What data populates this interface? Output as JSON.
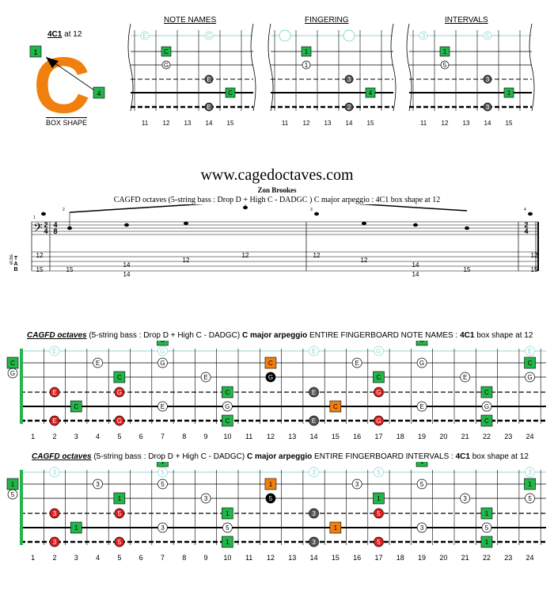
{
  "box": {
    "label": "4C1",
    "position": "at 12",
    "letter": "C",
    "finger_top": "1",
    "finger_bottom": "4",
    "caption": "BOX SHAPE",
    "color": "#f07f0e"
  },
  "mini": {
    "titles": [
      "NOTE NAMES",
      "FINGERING",
      "INTERVALS"
    ],
    "frets": [
      "11",
      "12",
      "13",
      "14",
      "15"
    ],
    "note_labels": {
      "top_open_1": "E",
      "top_open_2": "G",
      "s2": "C",
      "s3": "G",
      "s4": "E",
      "s5": "C",
      "s6": "E"
    },
    "fingering_labels": {
      "s2": "1",
      "s3": "1",
      "s4": "3",
      "s5": "4",
      "s6": "2"
    },
    "interval_labels": {
      "top_open_1": "3",
      "top_open_2": "5",
      "s2": "1",
      "s3": "5",
      "s4": "3",
      "s5": "1",
      "s6": "3"
    }
  },
  "score": {
    "site": "www.cagedoctaves.com",
    "author": "Zon Brookes",
    "subtitle": "CAGFD octaves (5-string bass : Drop D + High C - DADGC )  C major arpeggio : 4C1 box shape at 12",
    "instrument": "el.bs.",
    "time_sig_1": [
      "2",
      "4"
    ],
    "time_sig_2": [
      "4",
      "8"
    ],
    "time_sig_3": [
      "2",
      "4"
    ],
    "tab_letters": [
      "T",
      "A",
      "B"
    ],
    "measure_numbers": [
      "1",
      "2",
      "3",
      "4"
    ],
    "tab_numbers": [
      "12",
      "15",
      "15",
      "14",
      "14",
      "12",
      "12",
      "12",
      "12",
      "14",
      "14",
      "15",
      "12",
      "15"
    ]
  },
  "board1": {
    "title_italic": "CAGFD octaves",
    "title_rest": " (5-string bass : Drop D + High C - DADGC) ",
    "title_bold": "C major arpeggio",
    "title_tail": " ENTIRE FINGERBOARD NOTE NAMES : ",
    "title_box": "4C1",
    "title_end": " box shape at 12"
  },
  "board2": {
    "title_italic": "CAGFD octaves",
    "title_rest": " (5-string bass : Drop D + High C - DADGC) ",
    "title_bold": "C major arpeggio",
    "title_tail": " ENTIRE FINGERBOARD INTERVALS : ",
    "title_box": "4C1",
    "title_end": " box shape at 12"
  },
  "frets_full": [
    "1",
    "2",
    "3",
    "4",
    "5",
    "6",
    "7",
    "8",
    "9",
    "10",
    "11",
    "12",
    "13",
    "14",
    "15",
    "16",
    "17",
    "18",
    "19",
    "20",
    "21",
    "22",
    "23",
    "24"
  ],
  "colors": {
    "green": "#22b54a",
    "orange": "#f07f0e",
    "red": "#e01e1e",
    "grey": "#555555",
    "cyan": "#8fd6d0"
  }
}
